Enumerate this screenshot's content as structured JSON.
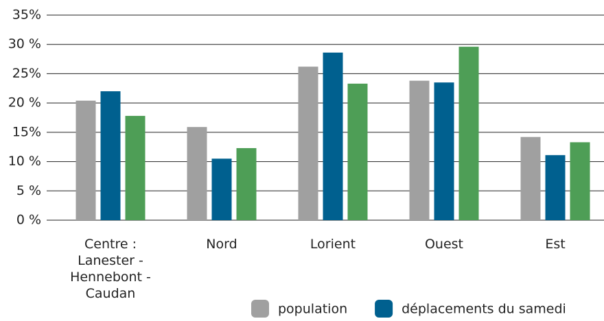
{
  "chart_data": {
    "type": "bar",
    "categories": [
      "Centre :\nLanester -\nHennebont -\nCaudan",
      "Nord",
      "Lorient",
      "Ouest",
      "Est"
    ],
    "series": [
      {
        "name": "population",
        "color": "#a0a0a0",
        "values": [
          20.4,
          15.9,
          26.2,
          23.8,
          14.2
        ]
      },
      {
        "name": "déplacements du samedi",
        "color": "#00608f",
        "values": [
          22.0,
          10.5,
          28.6,
          23.5,
          11.1
        ]
      },
      {
        "color": "#4e9e56",
        "values": [
          17.8,
          12.3,
          23.3,
          29.6,
          13.3
        ]
      }
    ],
    "ylim": [
      0,
      35
    ],
    "yticks": [
      {
        "value": 0,
        "label": "0 %"
      },
      {
        "value": 5,
        "label": "5 %"
      },
      {
        "value": 10,
        "label": "10 %"
      },
      {
        "value": 15,
        "label": "15%"
      },
      {
        "value": 20,
        "label": "20 %"
      },
      {
        "value": 25,
        "label": "25%"
      },
      {
        "value": 30,
        "label": "30 %"
      },
      {
        "value": 35,
        "label": "35%"
      }
    ],
    "grid": true
  }
}
